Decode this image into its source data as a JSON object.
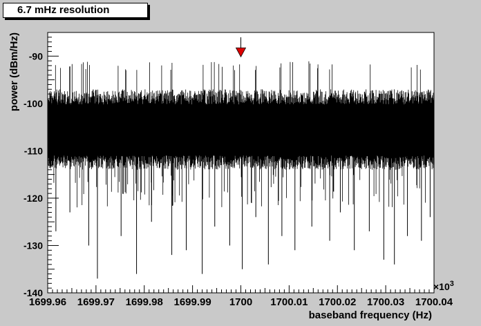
{
  "chart_data": {
    "type": "line",
    "title": "6.7 mHz resolution",
    "xlabel": "baseband frequency (Hz)",
    "ylabel": "power (dBm/Hz)",
    "x_multiplier_label": "×10",
    "x_multiplier_exponent": "3",
    "xlim": [
      1699.96,
      1700.04
    ],
    "ylim": [
      -140,
      -85
    ],
    "x_ticks": [
      {
        "value": 1699.96,
        "label": "1699.96"
      },
      {
        "value": 1699.97,
        "label": "1699.97"
      },
      {
        "value": 1699.98,
        "label": "1699.98"
      },
      {
        "value": 1699.99,
        "label": "1699.99"
      },
      {
        "value": 1700.0,
        "label": "1700"
      },
      {
        "value": 1700.01,
        "label": "1700.01"
      },
      {
        "value": 1700.02,
        "label": "1700.02"
      },
      {
        "value": 1700.03,
        "label": "1700.03"
      },
      {
        "value": 1700.04,
        "label": "1700.04"
      }
    ],
    "y_ticks": [
      {
        "value": -90,
        "label": "-90"
      },
      {
        "value": -100,
        "label": "-100"
      },
      {
        "value": -110,
        "label": "-110"
      },
      {
        "value": -120,
        "label": "-120"
      },
      {
        "value": -130,
        "label": "-130"
      },
      {
        "value": -140,
        "label": "-140"
      }
    ],
    "noise_floor": {
      "core_low": -111,
      "core_high": -97,
      "peak_max": -93,
      "dip_min": -138
    },
    "deep_dips": [
      {
        "x": 1699.9617,
        "y": -127
      },
      {
        "x": 1699.9646,
        "y": -123
      },
      {
        "x": 1699.9685,
        "y": -130
      },
      {
        "x": 1699.9703,
        "y": -137
      },
      {
        "x": 1699.9752,
        "y": -128
      },
      {
        "x": 1699.9784,
        "y": -136
      },
      {
        "x": 1699.9815,
        "y": -125
      },
      {
        "x": 1699.9857,
        "y": -132
      },
      {
        "x": 1699.9887,
        "y": -131
      },
      {
        "x": 1699.992,
        "y": -136
      },
      {
        "x": 1699.9946,
        "y": -126
      },
      {
        "x": 1699.9977,
        "y": -130
      },
      {
        "x": 1700.0003,
        "y": -135
      },
      {
        "x": 1700.0031,
        "y": -124
      },
      {
        "x": 1700.0057,
        "y": -134
      },
      {
        "x": 1700.0085,
        "y": -128
      },
      {
        "x": 1700.0112,
        "y": -131
      },
      {
        "x": 1700.0147,
        "y": -126
      },
      {
        "x": 1700.0184,
        "y": -129
      },
      {
        "x": 1700.0206,
        "y": -123
      },
      {
        "x": 1700.0235,
        "y": -131
      },
      {
        "x": 1700.0266,
        "y": -127
      },
      {
        "x": 1700.0296,
        "y": -133
      },
      {
        "x": 1700.0318,
        "y": -134
      },
      {
        "x": 1700.0345,
        "y": -128
      },
      {
        "x": 1700.0374,
        "y": -129
      },
      {
        "x": 1700.0392,
        "y": -124
      }
    ],
    "marker": {
      "x": 1700.0,
      "y": -90,
      "color": "#dd0000",
      "shape": "down-arrow"
    },
    "line_color": "#000000",
    "plot_background": "#ffffff",
    "canvas_background": "#c9c9c9",
    "grid": false,
    "legend": "none"
  }
}
